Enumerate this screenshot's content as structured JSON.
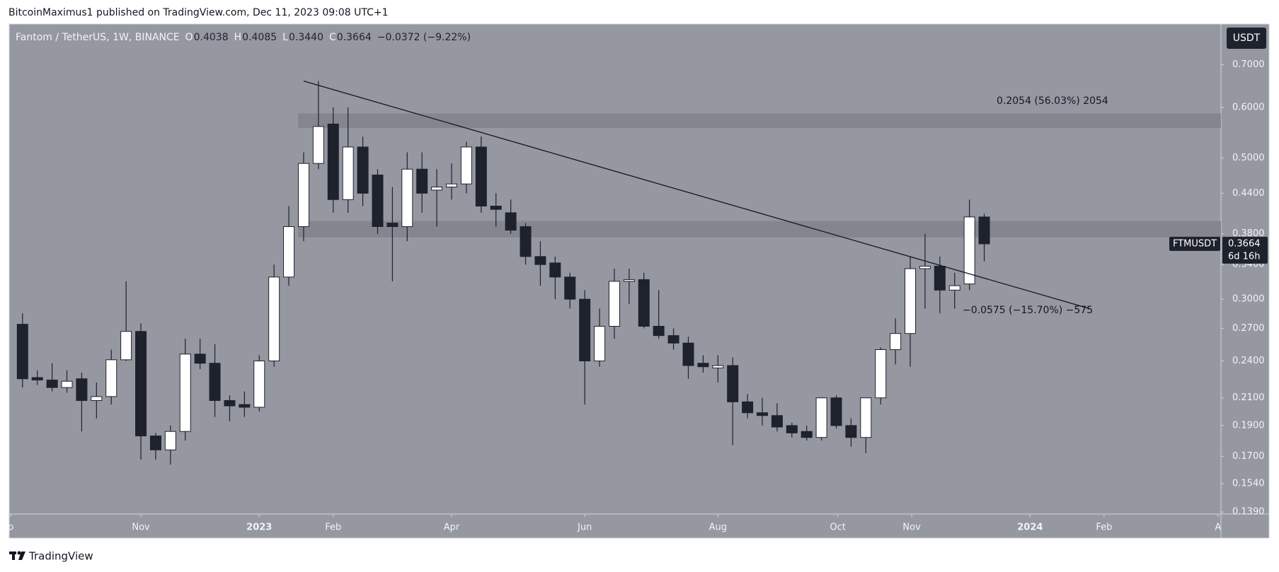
{
  "header": {
    "published": "BitcoinMaximus1 published on TradingView.com, Dec 11, 2023 09:08 UTC+1",
    "footer": "TradingView"
  },
  "chart_data": {
    "type": "candlestick",
    "symbol": "Fantom / TetherUS, 1W, BINANCE",
    "ohlc_legend": [
      {
        "key": "O",
        "value": "0.4038"
      },
      {
        "key": "H",
        "value": "0.4085"
      },
      {
        "key": "L",
        "value": "0.3440"
      },
      {
        "key": "C",
        "value": "0.3664"
      }
    ],
    "change": "−0.0372 (−9.22%)",
    "currency": "USDT",
    "ticker": "FTMUSDT",
    "last_price": 0.3664,
    "countdown": "6d 16h",
    "annotations": [
      "0.2054 (56.03%) 2054",
      "−0.0575 (−15.70%) −575"
    ],
    "log_scale": true,
    "up_color": "#ffffff",
    "down_color": "#1e222d",
    "background": "#9598a1",
    "zone_color": "#80838c",
    "series": {
      "open": [
        0.274,
        0.226,
        0.224,
        0.218,
        0.225,
        0.208,
        0.211,
        0.241,
        0.267,
        0.183,
        0.174,
        0.186,
        0.246,
        0.238,
        0.208,
        0.205,
        0.203,
        0.24,
        0.325,
        0.39,
        0.49,
        0.565,
        0.43,
        0.52,
        0.47,
        0.395,
        0.39,
        0.48,
        0.445,
        0.45,
        0.455,
        0.52,
        0.42,
        0.41,
        0.39,
        0.35,
        0.342,
        0.325,
        0.3,
        0.24,
        0.272,
        0.32,
        0.322,
        0.272,
        0.263,
        0.256,
        0.238,
        0.234,
        0.236,
        0.207,
        0.199,
        0.197,
        0.19,
        0.186,
        0.182,
        0.21,
        0.19,
        0.182,
        0.21,
        0.25,
        0.265,
        0.335,
        0.338,
        0.31,
        0.317,
        0.4038
      ],
      "high": [
        0.285,
        0.232,
        0.238,
        0.232,
        0.23,
        0.222,
        0.25,
        0.32,
        0.275,
        0.185,
        0.19,
        0.26,
        0.26,
        0.255,
        0.212,
        0.215,
        0.245,
        0.34,
        0.42,
        0.51,
        0.66,
        0.6,
        0.6,
        0.54,
        0.48,
        0.45,
        0.51,
        0.51,
        0.48,
        0.49,
        0.53,
        0.54,
        0.44,
        0.43,
        0.395,
        0.37,
        0.35,
        0.33,
        0.31,
        0.29,
        0.335,
        0.335,
        0.33,
        0.31,
        0.27,
        0.262,
        0.245,
        0.245,
        0.243,
        0.213,
        0.21,
        0.206,
        0.192,
        0.19,
        0.21,
        0.212,
        0.195,
        0.21,
        0.252,
        0.28,
        0.35,
        0.38,
        0.35,
        0.33,
        0.43,
        0.4085
      ],
      "low": [
        0.218,
        0.22,
        0.215,
        0.214,
        0.186,
        0.195,
        0.205,
        0.24,
        0.168,
        0.168,
        0.165,
        0.18,
        0.233,
        0.196,
        0.193,
        0.196,
        0.2,
        0.235,
        0.315,
        0.37,
        0.48,
        0.41,
        0.41,
        0.42,
        0.38,
        0.32,
        0.37,
        0.41,
        0.39,
        0.43,
        0.44,
        0.41,
        0.39,
        0.38,
        0.34,
        0.315,
        0.3,
        0.29,
        0.205,
        0.235,
        0.26,
        0.295,
        0.27,
        0.26,
        0.25,
        0.225,
        0.23,
        0.222,
        0.177,
        0.195,
        0.19,
        0.186,
        0.182,
        0.18,
        0.18,
        0.188,
        0.176,
        0.172,
        0.205,
        0.237,
        0.235,
        0.29,
        0.285,
        0.29,
        0.31,
        0.344
      ],
      "close": [
        0.225,
        0.224,
        0.218,
        0.223,
        0.208,
        0.211,
        0.241,
        0.267,
        0.183,
        0.174,
        0.186,
        0.246,
        0.238,
        0.208,
        0.204,
        0.203,
        0.24,
        0.325,
        0.39,
        0.49,
        0.56,
        0.43,
        0.52,
        0.44,
        0.39,
        0.39,
        0.48,
        0.44,
        0.45,
        0.455,
        0.52,
        0.42,
        0.415,
        0.385,
        0.35,
        0.34,
        0.325,
        0.3,
        0.24,
        0.272,
        0.32,
        0.322,
        0.272,
        0.263,
        0.256,
        0.236,
        0.235,
        0.236,
        0.207,
        0.199,
        0.197,
        0.189,
        0.185,
        0.182,
        0.21,
        0.19,
        0.182,
        0.21,
        0.25,
        0.265,
        0.335,
        0.338,
        0.31,
        0.315,
        0.4038,
        0.3664
      ]
    },
    "zones": [
      [
        0.557,
        0.587
      ],
      [
        0.375,
        0.398
      ]
    ],
    "trendline": {
      "x": [
        19,
        72.1
      ],
      "y": [
        0.66,
        0.29
      ]
    },
    "xlim": [
      -0.9,
      81
    ],
    "xticks": [
      {
        "value": -0.8,
        "label": "p"
      },
      {
        "value": 8,
        "label": "Nov"
      },
      {
        "value": 16,
        "label": "2023"
      },
      {
        "value": 21,
        "label": "Feb"
      },
      {
        "value": 29,
        "label": "Apr"
      },
      {
        "value": 38,
        "label": "Jun"
      },
      {
        "value": 47,
        "label": "Aug"
      },
      {
        "value": 55.1,
        "label": "Oct"
      },
      {
        "value": 60.1,
        "label": "Nov"
      },
      {
        "value": 68.1,
        "label": "2024"
      },
      {
        "value": 73.1,
        "label": "Feb"
      },
      {
        "value": 80.8,
        "label": "A"
      }
    ],
    "ylim": [
      0.138,
      0.811
    ],
    "yticks": [
      {
        "value": 0.7,
        "label": "0.7000"
      },
      {
        "value": 0.6,
        "label": "0.6000"
      },
      {
        "value": 0.5,
        "label": "0.5000"
      },
      {
        "value": 0.44,
        "label": "0.4400"
      },
      {
        "value": 0.38,
        "label": "0.3800"
      },
      {
        "value": 0.34,
        "label": "0.3400"
      },
      {
        "value": 0.3,
        "label": "0.3000"
      },
      {
        "value": 0.27,
        "label": "0.2700"
      },
      {
        "value": 0.24,
        "label": "0.2400"
      },
      {
        "value": 0.21,
        "label": "0.2100"
      },
      {
        "value": 0.19,
        "label": "0.1900"
      },
      {
        "value": 0.17,
        "label": "0.1700"
      },
      {
        "value": 0.154,
        "label": "0.1540"
      },
      {
        "value": 0.139,
        "label": "0.1390"
      }
    ]
  }
}
